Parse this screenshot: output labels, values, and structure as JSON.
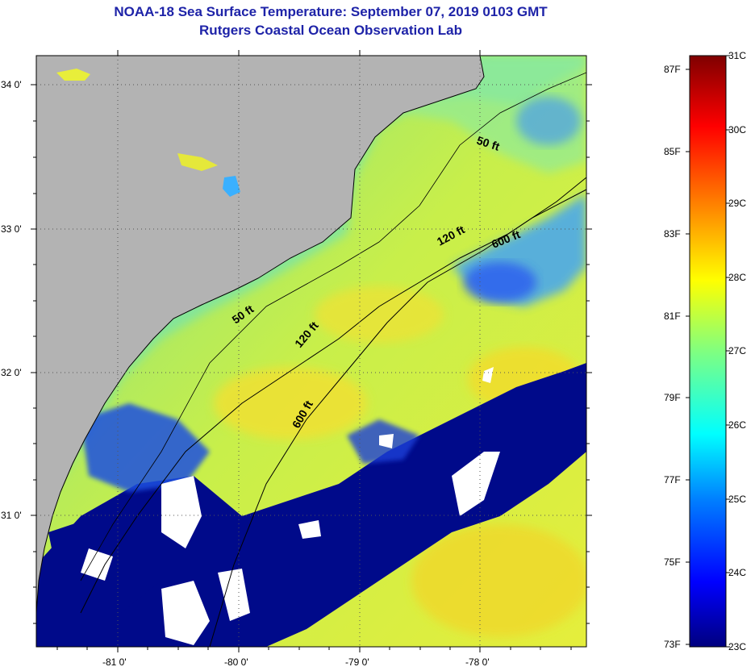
{
  "title": "NOAA-18 Sea Surface Temperature:  September 07, 2019 0103 GMT",
  "subtitle": "Rutgers Coastal Ocean Observation Lab",
  "map": {
    "latitude_labels": [
      "34 0'",
      "33 0'",
      "32 0'",
      "31 0'"
    ],
    "longitude_labels": [
      "-81 0'",
      "-80 0'",
      "-79 0'",
      "-78 0'"
    ],
    "contour_labels": [
      {
        "text": "50 ft",
        "rotate": 18
      },
      {
        "text": "120 ft",
        "rotate": -28
      },
      {
        "text": "600 ft",
        "rotate": -22
      },
      {
        "text": "50 ft",
        "rotate": -35
      },
      {
        "text": "120 ft",
        "rotate": -50
      },
      {
        "text": "600 ft",
        "rotate": -60
      }
    ],
    "colors": {
      "land": "#b3b3b3",
      "cloud_mask": "#000080",
      "no_data": "#ffffff",
      "coast": "#000000"
    }
  },
  "colorbar": {
    "min_c": 23,
    "max_c": 31,
    "celsius_labels": [
      "31C",
      "30C",
      "29C",
      "28C",
      "27C",
      "26C",
      "25C",
      "24C",
      "23C"
    ],
    "fahrenheit_labels": [
      "87F",
      "85F",
      "83F",
      "81F",
      "79F",
      "77F",
      "75F",
      "73F"
    ]
  }
}
